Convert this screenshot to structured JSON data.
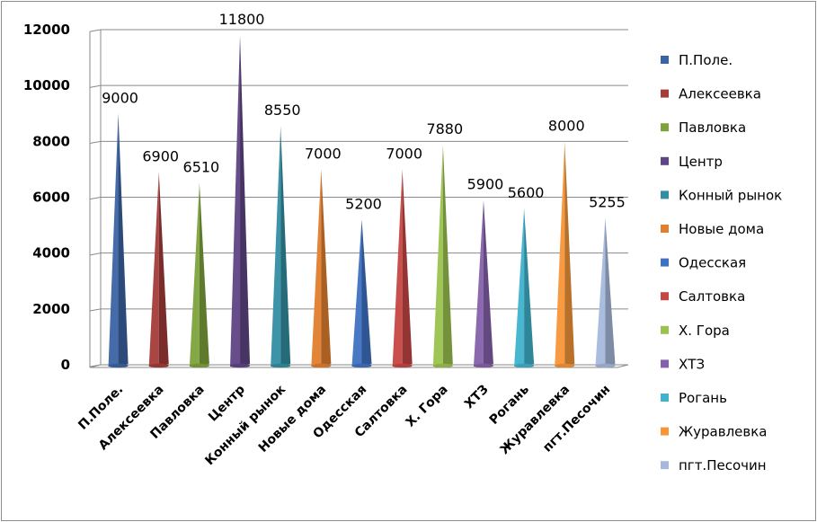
{
  "chart_data": {
    "type": "bar",
    "style": "3d-cone",
    "categories": [
      "П.Поле.",
      "Алексеевка",
      "Павловка",
      "Центр",
      "Конный рынок",
      "Новые дома",
      "Одесская",
      "Салтовка",
      "Х. Гора",
      "ХТЗ",
      "Рогань",
      "Журавлевка",
      "пгт.Песочин"
    ],
    "values": [
      9000,
      6900,
      6510,
      11800,
      8550,
      7000,
      5200,
      7000,
      7880,
      5900,
      5600,
      8000,
      5255
    ],
    "colors": [
      "#3b64a4",
      "#a43c3a",
      "#7ea33c",
      "#5f4585",
      "#338ea3",
      "#e27f2e",
      "#3f71c2",
      "#c64644",
      "#9bc24e",
      "#8561ab",
      "#3fb2cc",
      "#f79537",
      "#a6b9dc"
    ],
    "ylim": [
      0,
      12000
    ],
    "yticks": [
      0,
      2000,
      4000,
      6000,
      8000,
      10000,
      12000
    ],
    "grid": true,
    "legend_position": "right",
    "title": "",
    "xlabel": "",
    "ylabel": ""
  }
}
